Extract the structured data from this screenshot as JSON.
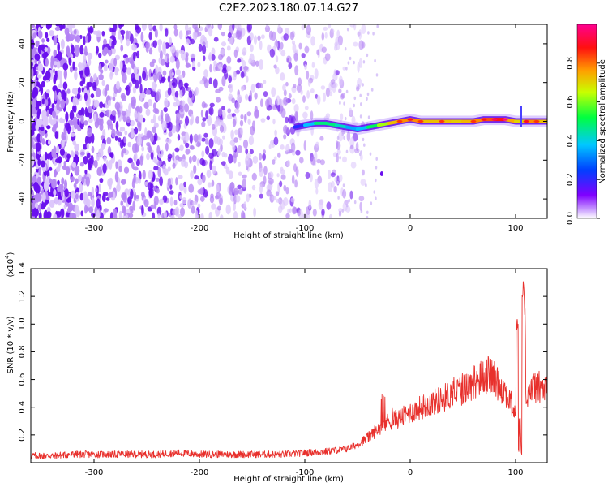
{
  "title": "C2E2.2023.180.07.14.G27",
  "colors": {
    "snr_line": "#e8302c",
    "spectrogram_noise": "#7a1fe8",
    "colorscale": [
      "#ffffff",
      "#7f00ff",
      "#0044ff",
      "#00c8ff",
      "#00ff60",
      "#c8ff00",
      "#ffb000",
      "#ff2020",
      "#ff0080"
    ]
  },
  "chart_data": [
    {
      "type": "heatmap",
      "xlabel": "Height of straight line (km)",
      "ylabel": "Frequency (Hz)",
      "xlim": [
        -360,
        130
      ],
      "ylim": [
        -50,
        50
      ],
      "x_ticks": [
        -300,
        -200,
        -100,
        0,
        100
      ],
      "x_tick_labels": [
        "-300",
        "-200",
        "-100",
        "0",
        "100"
      ],
      "y_ticks": [
        -40,
        -20,
        0,
        20,
        40
      ],
      "y_tick_labels": [
        "-40",
        "-20",
        "0",
        "20",
        "40"
      ],
      "colorbar": {
        "label": "Normalized spectral amplitude",
        "range": [
          0,
          1
        ],
        "ticks": [
          0.0,
          0.2,
          0.4,
          0.6,
          0.8
        ],
        "tick_labels": [
          "0.0",
          "0.2",
          "0.4",
          "0.6",
          "0.8"
        ]
      },
      "noise_region": {
        "x_from": -360,
        "x_to": -50,
        "y_from": -50,
        "y_to": 50
      },
      "signal_track": {
        "x": [
          -110,
          -100,
          -90,
          -80,
          -70,
          -60,
          -50,
          -40,
          -30,
          -20,
          -10,
          0,
          10,
          20,
          30,
          40,
          50,
          60,
          70,
          80,
          90,
          100,
          110,
          120,
          130
        ],
        "y": [
          -3,
          -2,
          -1,
          -1,
          -2,
          -3,
          -4,
          -3,
          -2,
          -1,
          0,
          1,
          0,
          0,
          0,
          0,
          0,
          0,
          1,
          1,
          1,
          0,
          0,
          0,
          0
        ],
        "amplitude": [
          0.12,
          0.3,
          0.45,
          0.5,
          0.45,
          0.4,
          0.3,
          0.45,
          0.55,
          0.7,
          0.75,
          0.8,
          0.75,
          0.7,
          0.75,
          0.7,
          0.72,
          0.75,
          0.8,
          0.85,
          0.9,
          0.6,
          0.8,
          0.75,
          0.7
        ]
      }
    },
    {
      "type": "line",
      "xlabel": "Height of straight line (km)",
      "ylabel": "SNR (10 * v/v)",
      "y_scale_label": "(x10^4)",
      "xlim": [
        -360,
        130
      ],
      "ylim": [
        0,
        1.4
      ],
      "x_ticks": [
        -300,
        -200,
        -100,
        0,
        100
      ],
      "x_tick_labels": [
        "-300",
        "-200",
        "-100",
        "0",
        "100"
      ],
      "y_ticks": [
        0.2,
        0.4,
        0.6,
        0.8,
        1.0,
        1.2,
        1.4
      ],
      "y_tick_labels": [
        "0.2",
        "0.4",
        "0.6",
        "0.8",
        "1.0",
        "1.2",
        "1.4"
      ],
      "series": [
        {
          "x": [
            -360,
            -340,
            -320,
            -300,
            -280,
            -260,
            -240,
            -220,
            -200,
            -180,
            -160,
            -140,
            -120,
            -100,
            -80,
            -60,
            -50,
            -40,
            -30,
            -20,
            -10,
            0,
            10,
            20,
            30,
            40,
            50,
            60,
            70,
            75,
            80,
            90,
            100,
            102,
            104,
            106,
            108,
            110,
            120,
            130
          ],
          "y": [
            0.05,
            0.05,
            0.06,
            0.06,
            0.06,
            0.06,
            0.06,
            0.07,
            0.06,
            0.06,
            0.06,
            0.06,
            0.06,
            0.07,
            0.08,
            0.1,
            0.13,
            0.18,
            0.25,
            0.3,
            0.32,
            0.36,
            0.4,
            0.43,
            0.46,
            0.5,
            0.53,
            0.58,
            0.62,
            0.64,
            0.6,
            0.52,
            0.35,
            0.15,
            0.6,
            0.05,
            1.35,
            0.5,
            0.55,
            0.52
          ]
        }
      ]
    }
  ]
}
